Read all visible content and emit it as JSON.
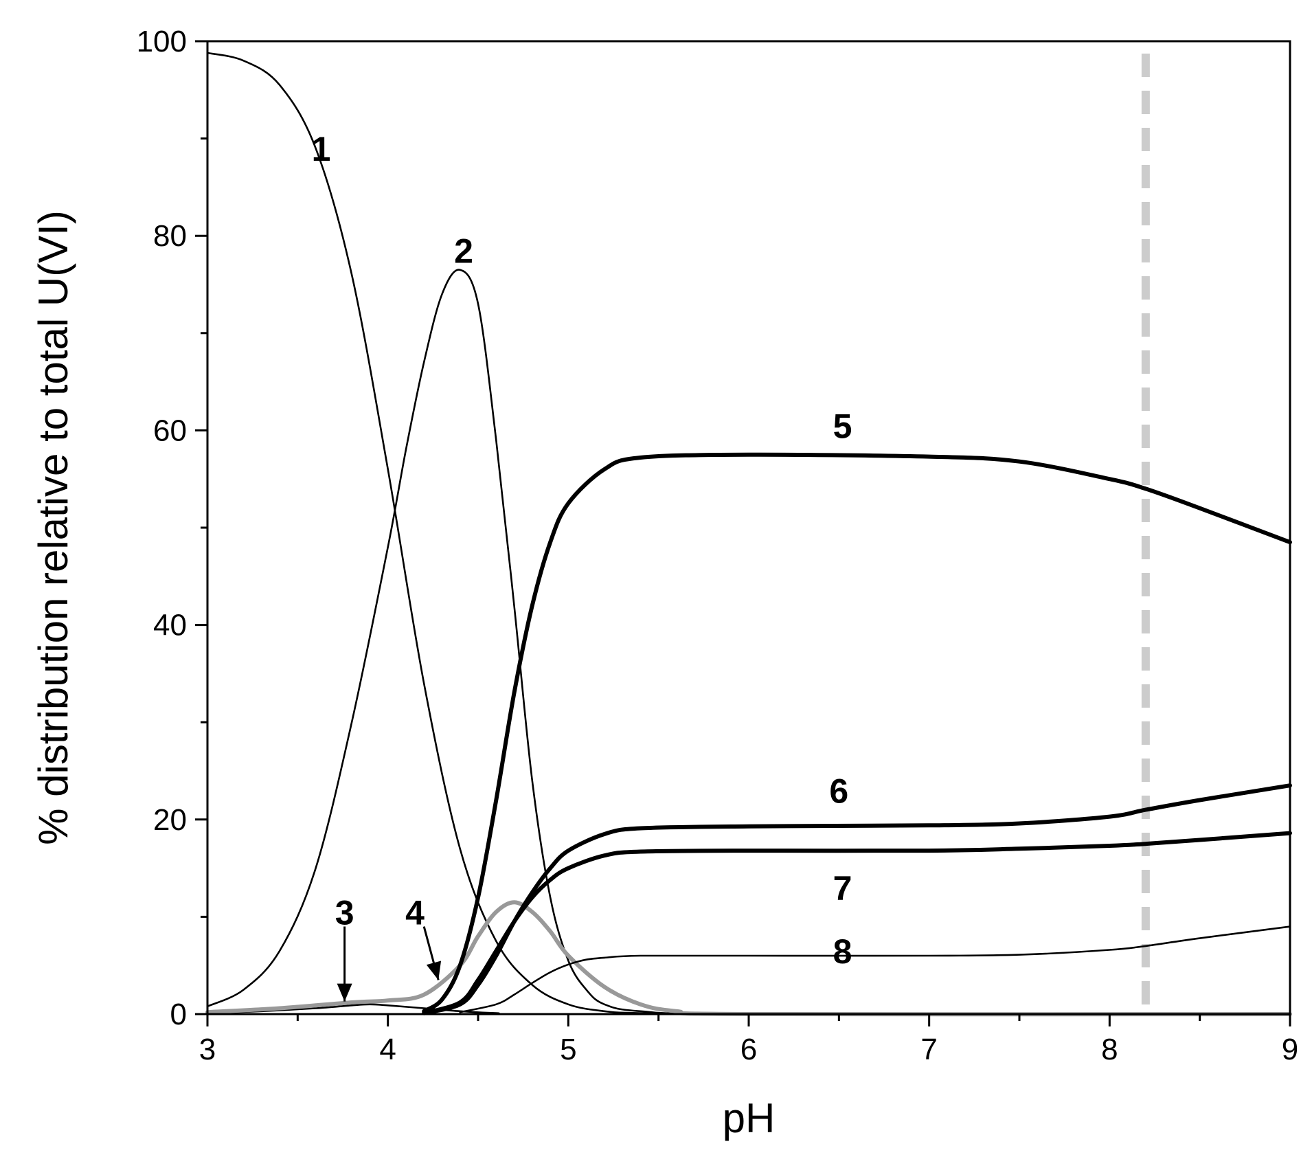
{
  "chart_data": {
    "type": "line",
    "title": "",
    "xlabel": "pH",
    "ylabel": "% distribution relative to total U(VI)",
    "xlim": [
      3,
      9
    ],
    "ylim": [
      0,
      100
    ],
    "x_ticks": [
      3,
      4,
      5,
      6,
      7,
      8,
      9
    ],
    "x_tick_labels": [
      "3",
      "4",
      "5",
      "6",
      "7",
      "8",
      "9"
    ],
    "y_ticks": [
      0,
      20,
      40,
      60,
      80,
      100
    ],
    "y_tick_labels": [
      "0",
      "20",
      "40",
      "60",
      "80",
      "100"
    ],
    "grid": false,
    "legend": "none (curves labeled directly with numbers)",
    "reference_line": {
      "x": 8.2,
      "style": "dashed",
      "color": "#cccccc"
    },
    "series": [
      {
        "name": "1",
        "color": "#000000",
        "weight": "thin",
        "x": [
          3.0,
          3.2,
          3.4,
          3.6,
          3.8,
          4.0,
          4.2,
          4.4,
          4.6,
          4.8,
          5.0,
          5.2,
          5.4,
          6.0,
          9.0
        ],
        "y": [
          98.8,
          98.0,
          95.5,
          89.0,
          76.0,
          56.0,
          34.0,
          17.0,
          7.5,
          3.0,
          1.0,
          0.3,
          0.1,
          0.0,
          0.0
        ]
      },
      {
        "name": "2",
        "color": "#000000",
        "weight": "thin",
        "x": [
          3.0,
          3.2,
          3.4,
          3.6,
          3.8,
          4.0,
          4.1,
          4.2,
          4.3,
          4.4,
          4.5,
          4.6,
          4.7,
          4.8,
          4.9,
          5.0,
          5.1,
          5.2,
          5.4,
          6.0,
          9.0
        ],
        "y": [
          0.8,
          2.5,
          6.5,
          15.0,
          30.0,
          48.0,
          58.0,
          67.0,
          74.0,
          76.5,
          73.0,
          59.0,
          42.0,
          24.0,
          12.0,
          5.5,
          2.5,
          1.0,
          0.3,
          0.0,
          0.0
        ]
      },
      {
        "name": "3",
        "color": "#000000",
        "weight": "thin",
        "x": [
          3.0,
          3.3,
          3.6,
          3.8,
          3.9,
          4.0,
          4.2,
          4.4,
          4.6,
          5.0,
          9.0
        ],
        "y": [
          0.1,
          0.3,
          0.6,
          0.9,
          1.0,
          0.9,
          0.6,
          0.3,
          0.1,
          0.0,
          0.0
        ]
      },
      {
        "name": "4",
        "color": "#999999",
        "weight": "thick",
        "x": [
          3.0,
          3.4,
          3.8,
          4.0,
          4.2,
          4.4,
          4.5,
          4.6,
          4.7,
          4.8,
          4.9,
          5.0,
          5.2,
          5.4,
          5.6,
          6.0,
          9.0
        ],
        "y": [
          0.2,
          0.6,
          1.2,
          1.4,
          2.0,
          5.0,
          8.0,
          10.5,
          11.5,
          10.5,
          8.5,
          6.0,
          2.8,
          1.0,
          0.3,
          0.0,
          0.0
        ]
      },
      {
        "name": "5",
        "color": "#000000",
        "weight": "thick",
        "x": [
          4.2,
          4.3,
          4.4,
          4.5,
          4.6,
          4.7,
          4.8,
          4.9,
          5.0,
          5.2,
          5.4,
          6.0,
          7.0,
          7.5,
          8.0,
          8.2,
          8.5,
          9.0
        ],
        "y": [
          0.3,
          1.5,
          5.0,
          12.0,
          22.0,
          33.0,
          42.0,
          48.5,
          52.5,
          56.0,
          57.2,
          57.5,
          57.3,
          56.8,
          55.0,
          54.0,
          52.0,
          48.5
        ]
      },
      {
        "name": "6",
        "color": "#000000",
        "weight": "thick",
        "x": [
          4.2,
          4.4,
          4.5,
          4.6,
          4.7,
          4.8,
          4.9,
          5.0,
          5.2,
          5.4,
          6.0,
          7.0,
          7.5,
          8.0,
          8.2,
          8.5,
          9.0
        ],
        "y": [
          0.1,
          1.0,
          3.0,
          6.0,
          9.5,
          12.5,
          15.0,
          16.8,
          18.5,
          19.1,
          19.3,
          19.4,
          19.6,
          20.3,
          21.0,
          22.0,
          23.5
        ]
      },
      {
        "name": "7",
        "color": "#000000",
        "weight": "thick",
        "x": [
          4.2,
          4.4,
          4.5,
          4.6,
          4.7,
          4.8,
          4.9,
          5.0,
          5.2,
          5.4,
          6.0,
          7.0,
          7.5,
          8.0,
          8.2,
          8.5,
          9.0
        ],
        "y": [
          0.1,
          1.2,
          3.5,
          6.5,
          9.5,
          12.0,
          13.8,
          15.0,
          16.3,
          16.7,
          16.8,
          16.8,
          17.0,
          17.3,
          17.5,
          17.9,
          18.6
        ]
      },
      {
        "name": "8",
        "color": "#000000",
        "weight": "thin",
        "x": [
          4.4,
          4.6,
          4.7,
          4.8,
          4.9,
          5.0,
          5.1,
          5.2,
          5.4,
          6.0,
          7.0,
          7.5,
          8.0,
          8.2,
          8.5,
          9.0
        ],
        "y": [
          0.2,
          1.0,
          2.0,
          3.2,
          4.3,
          5.1,
          5.6,
          5.8,
          6.0,
          6.0,
          6.0,
          6.1,
          6.6,
          7.0,
          7.8,
          9.0
        ]
      }
    ],
    "annotations": [
      {
        "text": "1",
        "x": 3.63,
        "y": 89,
        "arrow": false
      },
      {
        "text": "2",
        "x": 4.42,
        "y": 78.5,
        "arrow": false
      },
      {
        "text": "3",
        "x": 3.76,
        "y": 10.5,
        "arrow": true,
        "arrow_from": [
          3.76,
          9.0
        ],
        "arrow_to": [
          3.76,
          1.3
        ]
      },
      {
        "text": "4",
        "x": 4.15,
        "y": 10.5,
        "arrow": true,
        "arrow_from": [
          4.2,
          9.0
        ],
        "arrow_to": [
          4.28,
          3.5
        ]
      },
      {
        "text": "5",
        "x": 6.52,
        "y": 60.5,
        "arrow": false
      },
      {
        "text": "6",
        "x": 6.5,
        "y": 23.0,
        "arrow": false
      },
      {
        "text": "7",
        "x": 6.52,
        "y": 13.0,
        "arrow": false
      },
      {
        "text": "8",
        "x": 6.52,
        "y": 6.5,
        "arrow": false
      }
    ]
  }
}
